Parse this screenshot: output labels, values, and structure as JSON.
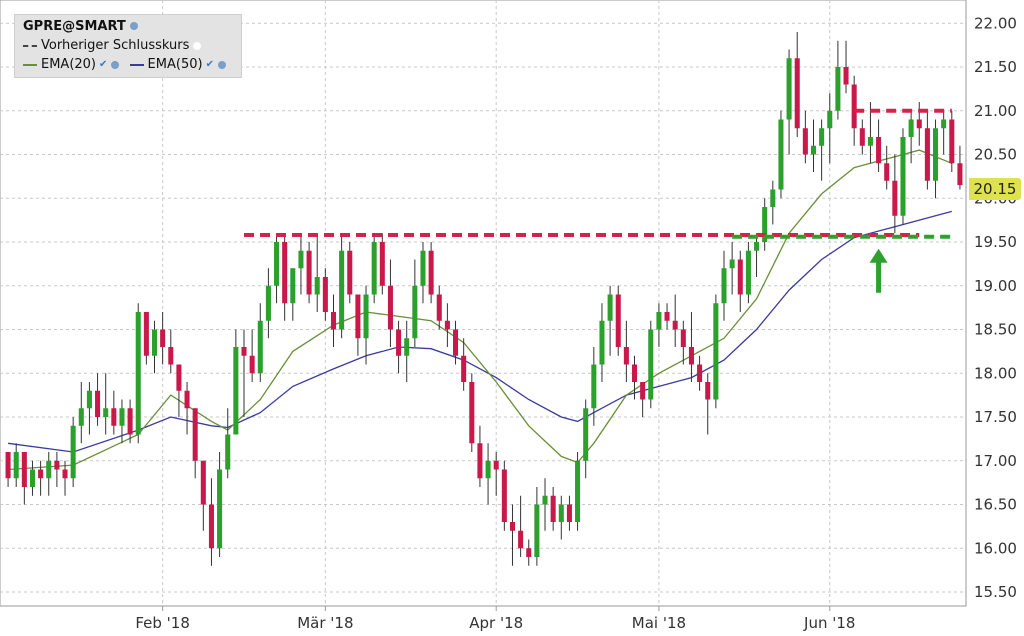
{
  "legend": {
    "title": "GPRE@SMART",
    "prev_close_label": "Vorheriger Schlusskurs",
    "ema20_label": "EMA(20)",
    "ema50_label": "EMA(50)"
  },
  "last_price": "20.15",
  "colors": {
    "up": "#2ca02c",
    "down": "#c8194a",
    "ema20": "#6b8e3a",
    "ema50": "#3a3aa0",
    "resistance": "#d6214a",
    "support": "#2da02d",
    "arrow": "#2da02d",
    "badge": "#dfe24f"
  },
  "chart_data": {
    "type": "candlestick",
    "title": "GPRE@SMART",
    "y_ticks": [
      "15.50",
      "16.00",
      "16.50",
      "17.00",
      "17.50",
      "18.00",
      "18.50",
      "19.00",
      "19.50",
      "20.00",
      "20.50",
      "21.00",
      "21.50",
      "22.00"
    ],
    "ylim": [
      15.4,
      22.2
    ],
    "x_labels": [
      {
        "label": "Feb '18",
        "index": 19
      },
      {
        "label": "Mär '18",
        "index": 39
      },
      {
        "label": "Apr '18",
        "index": 60
      },
      {
        "label": "Mai '18",
        "index": 80
      },
      {
        "label": "Jun '18",
        "index": 101
      }
    ],
    "candles": [
      [
        17.1,
        17.1,
        16.7,
        16.8
      ],
      [
        16.8,
        17.2,
        16.7,
        17.1
      ],
      [
        17.1,
        17.1,
        16.5,
        16.7
      ],
      [
        16.7,
        17.0,
        16.6,
        16.9
      ],
      [
        16.9,
        17.0,
        16.6,
        16.8
      ],
      [
        16.8,
        17.1,
        16.6,
        17.0
      ],
      [
        17.0,
        17.1,
        16.7,
        16.9
      ],
      [
        16.9,
        17.0,
        16.6,
        16.8
      ],
      [
        16.8,
        17.5,
        16.7,
        17.4
      ],
      [
        17.4,
        17.9,
        17.2,
        17.6
      ],
      [
        17.6,
        17.9,
        17.3,
        17.8
      ],
      [
        17.8,
        18.0,
        17.4,
        17.5
      ],
      [
        17.5,
        18.0,
        17.3,
        17.6
      ],
      [
        17.6,
        17.8,
        17.3,
        17.4
      ],
      [
        17.4,
        17.7,
        17.2,
        17.6
      ],
      [
        17.6,
        17.7,
        17.2,
        17.3
      ],
      [
        17.3,
        18.8,
        17.2,
        18.7
      ],
      [
        18.7,
        18.7,
        18.1,
        18.2
      ],
      [
        18.2,
        18.6,
        18.0,
        18.5
      ],
      [
        18.5,
        18.7,
        18.1,
        18.3
      ],
      [
        18.3,
        18.5,
        18.0,
        18.1
      ],
      [
        18.1,
        18.1,
        17.5,
        17.8
      ],
      [
        17.8,
        17.9,
        17.3,
        17.6
      ],
      [
        17.6,
        17.6,
        16.8,
        17.0
      ],
      [
        17.0,
        17.0,
        16.2,
        16.5
      ],
      [
        16.5,
        16.8,
        15.8,
        16.0
      ],
      [
        16.0,
        17.1,
        15.9,
        16.9
      ],
      [
        16.9,
        17.6,
        16.8,
        17.3
      ],
      [
        17.3,
        18.5,
        17.3,
        18.3
      ],
      [
        18.3,
        18.5,
        17.5,
        18.2
      ],
      [
        18.2,
        18.5,
        17.9,
        18.0
      ],
      [
        18.0,
        18.8,
        17.9,
        18.6
      ],
      [
        18.6,
        19.2,
        18.4,
        19.0
      ],
      [
        19.0,
        19.6,
        18.8,
        19.5
      ],
      [
        19.5,
        19.6,
        18.6,
        18.8
      ],
      [
        18.8,
        19.2,
        18.6,
        19.2
      ],
      [
        19.2,
        19.6,
        18.9,
        19.4
      ],
      [
        19.4,
        19.5,
        18.8,
        18.9
      ],
      [
        18.9,
        19.6,
        18.7,
        19.1
      ],
      [
        19.1,
        19.2,
        18.6,
        18.7
      ],
      [
        18.7,
        18.9,
        18.3,
        18.5
      ],
      [
        18.5,
        19.6,
        18.4,
        19.4
      ],
      [
        19.4,
        19.5,
        18.8,
        18.9
      ],
      [
        18.9,
        18.9,
        18.2,
        18.4
      ],
      [
        18.4,
        19.0,
        18.1,
        18.9
      ],
      [
        18.9,
        19.6,
        18.8,
        19.5
      ],
      [
        19.5,
        19.6,
        18.9,
        19.0
      ],
      [
        19.0,
        19.3,
        18.3,
        18.5
      ],
      [
        18.5,
        18.6,
        18.0,
        18.2
      ],
      [
        18.2,
        18.6,
        17.9,
        18.4
      ],
      [
        18.4,
        19.3,
        18.3,
        19.0
      ],
      [
        19.0,
        19.5,
        18.8,
        19.4
      ],
      [
        19.4,
        19.5,
        18.8,
        18.9
      ],
      [
        18.9,
        19.0,
        18.5,
        18.6
      ],
      [
        18.6,
        18.8,
        18.3,
        18.5
      ],
      [
        18.5,
        18.6,
        18.1,
        18.2
      ],
      [
        18.2,
        18.4,
        17.8,
        17.9
      ],
      [
        17.9,
        18.0,
        17.1,
        17.2
      ],
      [
        17.2,
        17.4,
        16.7,
        16.8
      ],
      [
        16.8,
        17.2,
        16.5,
        17.0
      ],
      [
        17.0,
        17.1,
        16.6,
        16.9
      ],
      [
        16.9,
        17.0,
        16.2,
        16.3
      ],
      [
        16.3,
        16.5,
        15.8,
        16.2
      ],
      [
        16.2,
        16.6,
        15.9,
        16.0
      ],
      [
        16.0,
        16.1,
        15.8,
        15.9
      ],
      [
        15.9,
        16.7,
        15.8,
        16.5
      ],
      [
        16.5,
        16.8,
        16.2,
        16.6
      ],
      [
        16.6,
        16.7,
        16.2,
        16.3
      ],
      [
        16.3,
        16.6,
        16.1,
        16.5
      ],
      [
        16.5,
        16.6,
        16.2,
        16.3
      ],
      [
        16.3,
        17.1,
        16.2,
        17.0
      ],
      [
        17.0,
        17.7,
        16.8,
        17.6
      ],
      [
        17.6,
        18.3,
        17.4,
        18.1
      ],
      [
        18.1,
        18.8,
        17.9,
        18.6
      ],
      [
        18.6,
        19.0,
        18.2,
        18.9
      ],
      [
        18.9,
        19.0,
        18.2,
        18.3
      ],
      [
        18.3,
        18.6,
        17.9,
        18.1
      ],
      [
        18.1,
        18.2,
        17.7,
        17.9
      ],
      [
        17.9,
        17.9,
        17.5,
        17.7
      ],
      [
        17.7,
        18.6,
        17.6,
        18.5
      ],
      [
        18.5,
        18.8,
        18.3,
        18.7
      ],
      [
        18.7,
        18.8,
        18.5,
        18.6
      ],
      [
        18.6,
        18.9,
        18.3,
        18.5
      ],
      [
        18.5,
        18.6,
        18.1,
        18.3
      ],
      [
        18.3,
        18.7,
        17.9,
        18.1
      ],
      [
        18.1,
        18.2,
        17.8,
        17.9
      ],
      [
        17.9,
        18.0,
        17.3,
        17.7
      ],
      [
        17.7,
        18.9,
        17.6,
        18.8
      ],
      [
        18.8,
        19.4,
        18.6,
        19.2
      ],
      [
        19.2,
        19.5,
        18.9,
        19.3
      ],
      [
        19.3,
        19.4,
        18.7,
        18.9
      ],
      [
        18.9,
        19.5,
        18.8,
        19.4
      ],
      [
        19.4,
        19.6,
        19.1,
        19.5
      ],
      [
        19.5,
        20.0,
        19.4,
        19.9
      ],
      [
        19.9,
        20.2,
        19.7,
        20.1
      ],
      [
        20.1,
        21.0,
        20.0,
        20.9
      ],
      [
        20.9,
        21.7,
        20.5,
        21.6
      ],
      [
        21.6,
        21.9,
        20.7,
        20.8
      ],
      [
        20.8,
        21.0,
        20.4,
        20.5
      ],
      [
        20.5,
        20.9,
        20.3,
        20.6
      ],
      [
        20.6,
        20.9,
        20.2,
        20.8
      ],
      [
        20.8,
        21.2,
        20.4,
        21.0
      ],
      [
        21.0,
        21.8,
        20.9,
        21.5
      ],
      [
        21.5,
        21.8,
        21.2,
        21.3
      ],
      [
        21.3,
        21.4,
        20.6,
        20.8
      ],
      [
        20.8,
        20.9,
        20.5,
        20.6
      ],
      [
        20.6,
        21.1,
        20.4,
        20.7
      ],
      [
        20.7,
        20.9,
        20.3,
        20.4
      ],
      [
        20.4,
        20.6,
        20.1,
        20.2
      ],
      [
        20.2,
        20.5,
        19.6,
        19.8
      ],
      [
        19.8,
        20.8,
        19.7,
        20.7
      ],
      [
        20.7,
        21.0,
        20.4,
        20.9
      ],
      [
        20.9,
        21.1,
        20.6,
        20.8
      ],
      [
        20.8,
        21.0,
        20.1,
        20.2
      ],
      [
        20.2,
        20.9,
        20.0,
        20.8
      ],
      [
        20.8,
        21.0,
        20.5,
        20.9
      ],
      [
        20.9,
        21.0,
        20.3,
        20.4
      ],
      [
        20.4,
        20.6,
        20.1,
        20.15
      ]
    ],
    "ema20": [
      [
        0,
        16.9
      ],
      [
        8,
        16.95
      ],
      [
        16,
        17.3
      ],
      [
        20,
        17.75
      ],
      [
        25,
        17.45
      ],
      [
        27,
        17.35
      ],
      [
        31,
        17.7
      ],
      [
        35,
        18.25
      ],
      [
        40,
        18.55
      ],
      [
        44,
        18.7
      ],
      [
        48,
        18.65
      ],
      [
        52,
        18.6
      ],
      [
        56,
        18.35
      ],
      [
        60,
        17.9
      ],
      [
        64,
        17.4
      ],
      [
        68,
        17.05
      ],
      [
        70,
        16.98
      ],
      [
        72,
        17.2
      ],
      [
        76,
        17.75
      ],
      [
        80,
        18.0
      ],
      [
        84,
        18.2
      ],
      [
        88,
        18.4
      ],
      [
        92,
        18.85
      ],
      [
        96,
        19.6
      ],
      [
        100,
        20.05
      ],
      [
        104,
        20.35
      ],
      [
        108,
        20.45
      ],
      [
        112,
        20.55
      ],
      [
        116,
        20.4
      ]
    ],
    "ema50": [
      [
        0,
        17.2
      ],
      [
        8,
        17.1
      ],
      [
        16,
        17.35
      ],
      [
        20,
        17.5
      ],
      [
        25,
        17.4
      ],
      [
        27,
        17.38
      ],
      [
        31,
        17.55
      ],
      [
        35,
        17.85
      ],
      [
        40,
        18.05
      ],
      [
        44,
        18.2
      ],
      [
        48,
        18.3
      ],
      [
        52,
        18.28
      ],
      [
        56,
        18.15
      ],
      [
        60,
        17.95
      ],
      [
        64,
        17.7
      ],
      [
        68,
        17.5
      ],
      [
        70,
        17.45
      ],
      [
        72,
        17.55
      ],
      [
        76,
        17.75
      ],
      [
        80,
        17.85
      ],
      [
        84,
        17.95
      ],
      [
        88,
        18.15
      ],
      [
        92,
        18.5
      ],
      [
        96,
        18.95
      ],
      [
        100,
        19.3
      ],
      [
        104,
        19.55
      ],
      [
        108,
        19.65
      ],
      [
        112,
        19.75
      ],
      [
        116,
        19.85
      ]
    ],
    "resistance_1": {
      "value": 19.58,
      "from": 29,
      "to": 112
    },
    "support_1": {
      "value": 19.56,
      "from": 89,
      "to": 116
    },
    "resistance_2": {
      "value": 21.0,
      "from": 104,
      "to": 116
    },
    "arrow_at": 107,
    "grid": true
  }
}
